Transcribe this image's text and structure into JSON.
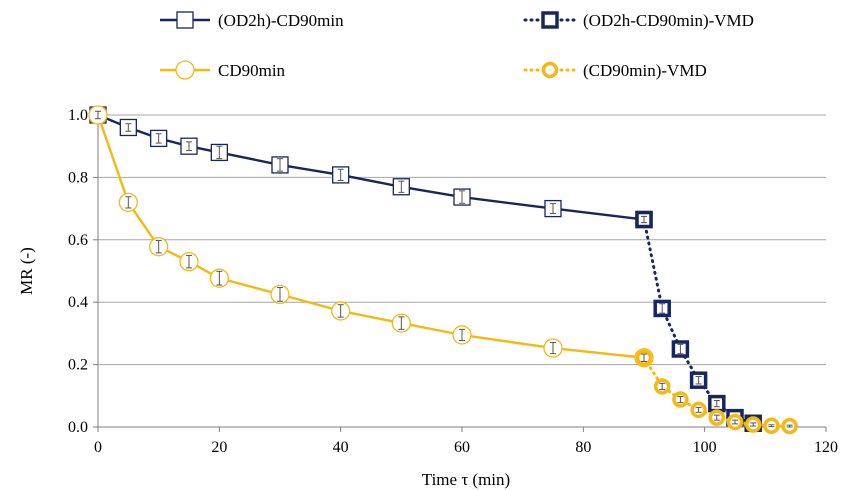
{
  "chart_data": {
    "type": "line",
    "title": "",
    "xlabel": "Time τ (min)",
    "ylabel": "MR (-)",
    "xlim": [
      0,
      120
    ],
    "ylim": [
      0,
      1.0
    ],
    "x_ticks": [
      0,
      20,
      40,
      60,
      80,
      100,
      120
    ],
    "y_ticks": [
      0.0,
      0.2,
      0.4,
      0.6,
      0.8,
      1.0
    ],
    "x_tick_labels": [
      "0",
      "20",
      "40",
      "60",
      "80",
      "100",
      "120"
    ],
    "y_tick_labels": [
      "0.0",
      "0.2",
      "0.4",
      "0.6",
      "0.8",
      "1.0"
    ],
    "grid": "horizontal",
    "legend_position": "top",
    "series": [
      {
        "name": "(OD2h)-CD90min",
        "color": "#17275e",
        "marker": "square",
        "line": "solid",
        "x": [
          0,
          5,
          10,
          15,
          20,
          30,
          40,
          50,
          60,
          75,
          90
        ],
        "y": [
          1.0,
          0.96,
          0.925,
          0.9,
          0.88,
          0.84,
          0.808,
          0.77,
          0.737,
          0.7,
          0.665
        ],
        "err": [
          0.012,
          0.012,
          0.015,
          0.014,
          0.02,
          0.02,
          0.018,
          0.018,
          0.02,
          0.016,
          0.01
        ]
      },
      {
        "name": "(OD2h-CD90min)-VMD",
        "color": "#17275e",
        "marker": "square-bold",
        "line": "dotted",
        "x": [
          90,
          93,
          96,
          99,
          102,
          105,
          108
        ],
        "y": [
          0.665,
          0.38,
          0.25,
          0.15,
          0.075,
          0.03,
          0.012
        ],
        "err": [
          0.01,
          0.015,
          0.015,
          0.012,
          0.01,
          0.008,
          0.005
        ]
      },
      {
        "name": "CD90min",
        "color": "#f5b816",
        "marker": "circle",
        "line": "solid",
        "x": [
          0,
          5,
          10,
          15,
          20,
          30,
          40,
          50,
          60,
          75,
          90
        ],
        "y": [
          1.0,
          0.72,
          0.578,
          0.53,
          0.477,
          0.425,
          0.372,
          0.333,
          0.295,
          0.253,
          0.222
        ],
        "err": [
          0.012,
          0.018,
          0.02,
          0.02,
          0.022,
          0.022,
          0.02,
          0.02,
          0.018,
          0.018,
          0.012
        ]
      },
      {
        "name": "(CD90min)-VMD",
        "color": "#f5b816",
        "marker": "circle-bold",
        "line": "dotted",
        "x": [
          90,
          93,
          96,
          99,
          102,
          105,
          108,
          111,
          114
        ],
        "y": [
          0.222,
          0.13,
          0.088,
          0.055,
          0.03,
          0.016,
          0.008,
          0.004,
          0.003
        ],
        "err": [
          0.012,
          0.01,
          0.01,
          0.008,
          0.008,
          0.006,
          0.005,
          0.003,
          0.003
        ]
      }
    ]
  }
}
